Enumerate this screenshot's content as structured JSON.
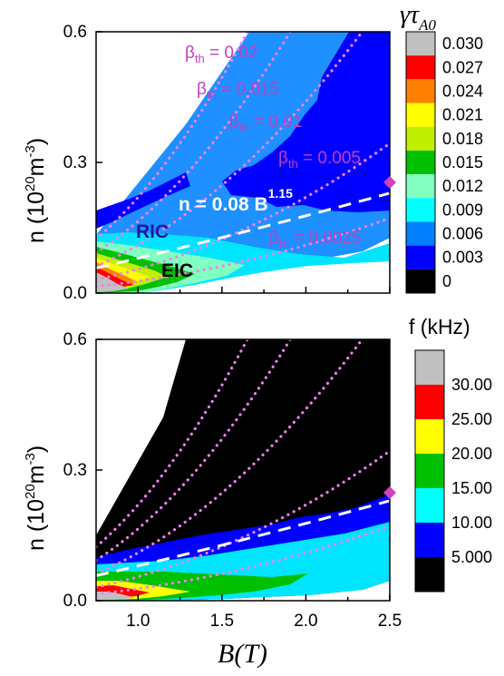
{
  "figure": {
    "x_axis_label": "B(T)",
    "y_axis_label": "n (10",
    "y_axis_exponent": "20",
    "y_axis_unit": "m",
    "y_axis_unit_exponent": "-3",
    "y_axis_close": ")"
  },
  "chart_data": [
    {
      "type": "heatmap",
      "panel": "top",
      "xlim": [
        0.75,
        2.5
      ],
      "ylim": [
        0.0,
        0.6
      ],
      "y_ticks": [
        "0.0",
        "0.3",
        "0.6"
      ],
      "colorbar": {
        "title": "γτ",
        "title_subscript": "A0",
        "levels": [
          "0.030",
          "0.027",
          "0.024",
          "0.021",
          "0.018",
          "0.015",
          "0.012",
          "0.009",
          "0.006",
          "0.003",
          "0"
        ],
        "colors": [
          "#c0c0c0",
          "#ff0000",
          "#ff8000",
          "#ffff00",
          "#c0f000",
          "#00c000",
          "#80ffc0",
          "#00ffff",
          "#0080ff",
          "#0000ff",
          "#000000"
        ]
      },
      "annotations": {
        "beta_labels": [
          {
            "prefix": "β",
            "sub": "th",
            "value": " = 0.02",
            "B": 1.7,
            "n": 0.55
          },
          {
            "prefix": "β",
            "sub": "th",
            "value": " = 0.015",
            "B": 2.25,
            "n": 0.47
          },
          {
            "prefix": "β",
            "sub": "th",
            "value": " = 0.01",
            "B": 2.6,
            "n": 0.39
          },
          {
            "prefix": "β",
            "sub": "th",
            "value": " = 0.005",
            "B": 3.05,
            "n": 0.31
          },
          {
            "prefix": "β",
            "sub": "th",
            "value": " = 0.0025",
            "B": 3.0,
            "n": 0.13
          }
        ],
        "scaling_law": {
          "text": "n = 0.08 B",
          "exponent": "1.15",
          "B": 1.9,
          "n": 0.2
        },
        "regions": [
          {
            "text": "RIC",
            "B": 1.1,
            "n": 0.14,
            "color": "#1a1aa0"
          },
          {
            "text": "EIC",
            "B": 1.55,
            "n": 0.05,
            "color": "#000000"
          }
        ]
      },
      "beta_curves": [
        0.02,
        0.015,
        0.01,
        0.005,
        0.0025
      ],
      "scaling_curve": {
        "coef": 0.08,
        "exponent": 1.15
      },
      "marker": {
        "B": 2.5,
        "n": 0.255,
        "color": "#d040c0"
      }
    },
    {
      "type": "heatmap",
      "panel": "bottom",
      "xlim": [
        0.75,
        2.5
      ],
      "ylim": [
        0.0,
        0.6
      ],
      "x_ticks": [
        "1.0",
        "1.5",
        "2.0",
        "2.5"
      ],
      "y_ticks": [
        "0.0",
        "0.3",
        "0.6"
      ],
      "colorbar": {
        "title": "f (kHz)",
        "levels": [
          "30.00",
          "25.00",
          "20.00",
          "15.00",
          "10.00",
          "5.000"
        ],
        "colors": [
          "#c0c0c0",
          "#ff0000",
          "#ffff00",
          "#00c000",
          "#00ffff",
          "#0000ff",
          "#000000"
        ]
      },
      "beta_curves": [
        0.02,
        0.015,
        0.01,
        0.005,
        0.0025
      ],
      "scaling_curve": {
        "coef": 0.08,
        "exponent": 1.15
      },
      "marker": {
        "B": 2.5,
        "n": 0.245,
        "color": "#d040c0"
      }
    }
  ]
}
